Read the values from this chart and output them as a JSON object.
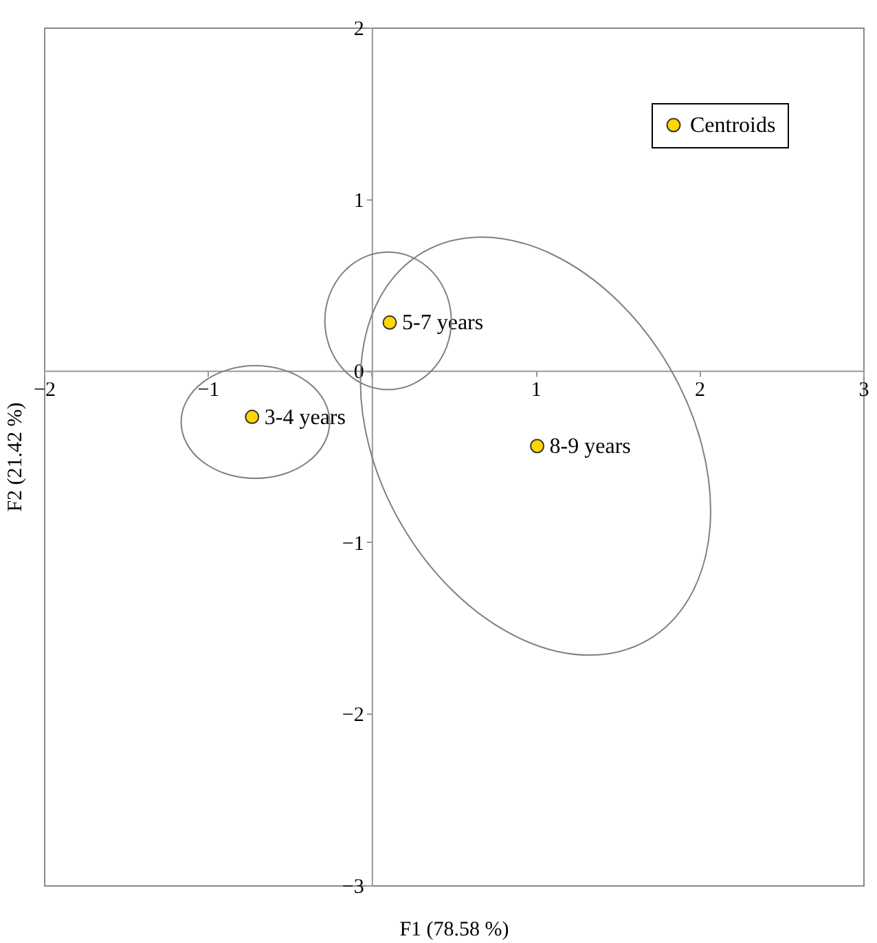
{
  "chart_data": {
    "type": "scatter",
    "xlabel": "F1 (78.58 %)",
    "ylabel": "F2 (21.42 %)",
    "xlim": [
      -2,
      3
    ],
    "ylim": [
      -3,
      2
    ],
    "xticks": [
      -2,
      -1,
      {
        "value": 0,
        "label": null
      },
      1,
      2,
      3
    ],
    "yticks": [
      -3,
      -2,
      -1,
      0,
      1,
      2
    ],
    "grid": false,
    "legend": "top right",
    "series": [
      {
        "type": "scatter",
        "name": "Centroids",
        "color": "#ffd700",
        "marker": "circle",
        "x": [
          -0.73,
          0.11,
          1.01
        ],
        "values": [
          -0.27,
          0.28,
          -0.44
        ]
      }
    ],
    "annotations": [
      {
        "text": "3-4 years",
        "x": -0.73,
        "y": -0.27
      },
      {
        "text": "5-7 years",
        "x": 0.11,
        "y": 0.28
      },
      {
        "text": "8-9 years",
        "x": 1.01,
        "y": -0.44
      }
    ]
  }
}
